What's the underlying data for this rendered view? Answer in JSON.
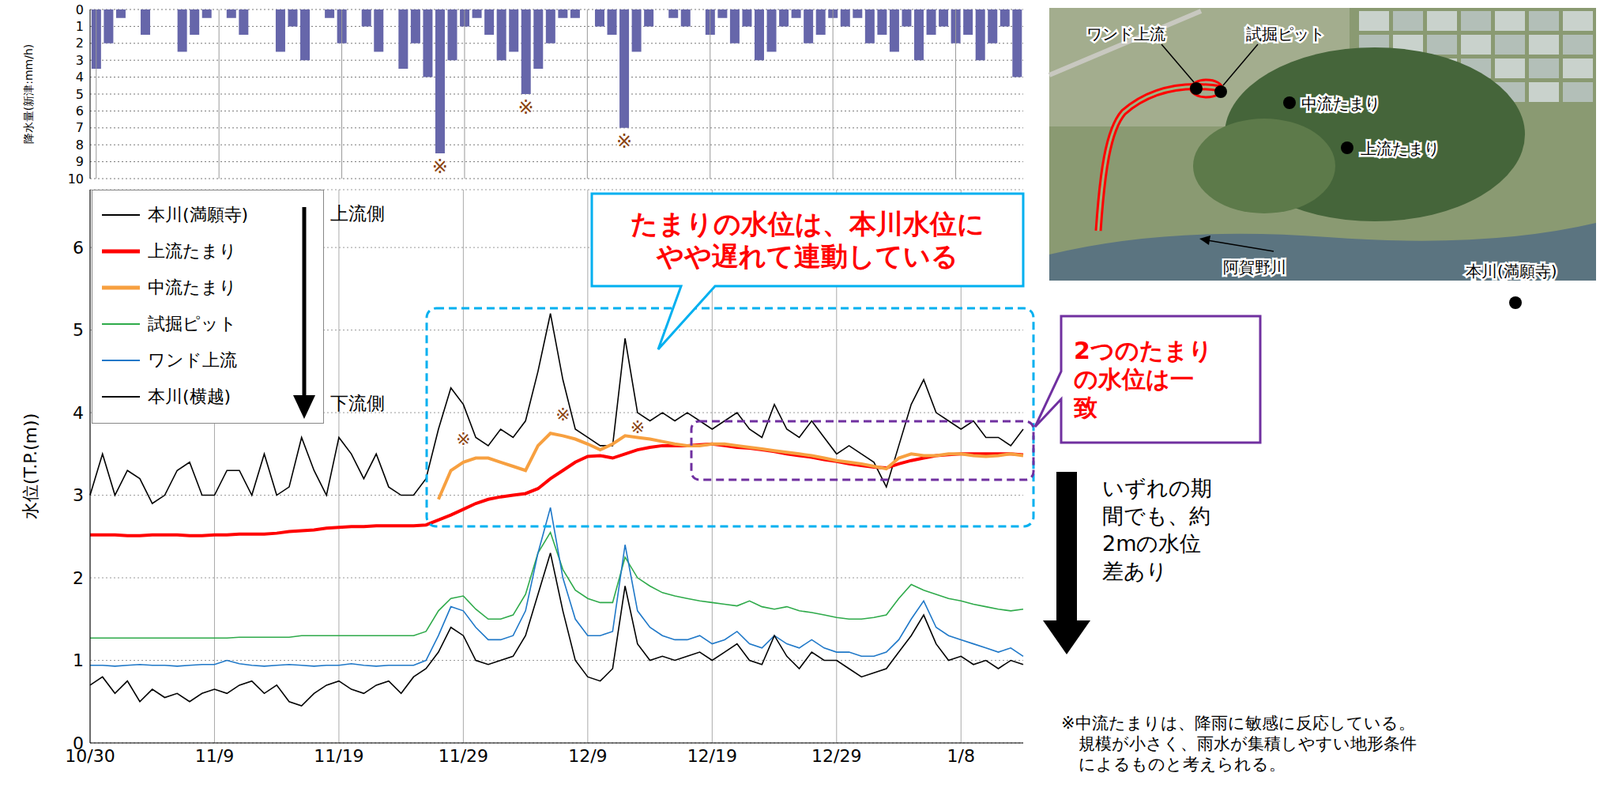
{
  "chart_data": [
    {
      "type": "bar",
      "y_label": "降水量(新津:mm/h)",
      "categories": [
        "10/30",
        null,
        null,
        null,
        null,
        null,
        null,
        null,
        null,
        null,
        "11/9",
        null,
        null,
        null,
        null,
        null,
        null,
        null,
        null,
        null,
        "11/19",
        null,
        null,
        null,
        null,
        null,
        null,
        null,
        null,
        null,
        "11/29",
        null,
        null,
        null,
        null,
        null,
        null,
        null,
        null,
        null,
        "12/9",
        null,
        null,
        null,
        null,
        null,
        null,
        null,
        null,
        null,
        "12/19",
        null,
        null,
        null,
        null,
        null,
        null,
        null,
        null,
        null,
        "12/29",
        null,
        null,
        null,
        null,
        null,
        null,
        null,
        null,
        null,
        "1/8",
        null,
        null,
        null,
        null,
        null
      ],
      "values": [
        3.5,
        2,
        0.5,
        0,
        1.5,
        0,
        0,
        2.5,
        1.5,
        0.5,
        0,
        0.5,
        1.5,
        0,
        0,
        2.5,
        1,
        3,
        0,
        0.5,
        2,
        0,
        1,
        2.5,
        0,
        3.5,
        2,
        4,
        8.5,
        3,
        1,
        0.5,
        1.5,
        3,
        2.5,
        5,
        3.5,
        2,
        0.5,
        0.5,
        0,
        1,
        1.5,
        7,
        2.5,
        1,
        0,
        0.5,
        1,
        0,
        1.5,
        0.5,
        2,
        1,
        3,
        2.5,
        1,
        0.5,
        2,
        1.5,
        0.5,
        1,
        0.5,
        2,
        1.5,
        2.5,
        1,
        3,
        1.5,
        1,
        2,
        1.5,
        3,
        2,
        1,
        4
      ],
      "color": "#6666aa",
      "ylim": [
        10,
        0
      ],
      "yticks": [
        0,
        1,
        2,
        3,
        4,
        5,
        6,
        7,
        8,
        9,
        10
      ],
      "grid": true,
      "tick_labels": "y",
      "annotations": {
        "marks": [
          {
            "text": "※",
            "x": 28,
            "y": 9.3
          },
          {
            "text": "※",
            "x": 35,
            "y": 5.8
          },
          {
            "text": "※",
            "x": 43,
            "y": 7.8
          }
        ]
      }
    },
    {
      "type": "line",
      "y_label": "水位(T.P.(m))",
      "categories": [
        "10/30",
        null,
        null,
        null,
        null,
        null,
        null,
        null,
        null,
        null,
        "11/9",
        null,
        null,
        null,
        null,
        null,
        null,
        null,
        null,
        null,
        "11/19",
        null,
        null,
        null,
        null,
        null,
        null,
        null,
        null,
        null,
        "11/29",
        null,
        null,
        null,
        null,
        null,
        null,
        null,
        null,
        null,
        "12/9",
        null,
        null,
        null,
        null,
        null,
        null,
        null,
        null,
        null,
        "12/19",
        null,
        null,
        null,
        null,
        null,
        null,
        null,
        null,
        null,
        "12/29",
        null,
        null,
        null,
        null,
        null,
        null,
        null,
        null,
        null,
        "1/8",
        null,
        null,
        null,
        null,
        null
      ],
      "ylim": [
        0,
        6.7
      ],
      "yticks": [
        0,
        1,
        2,
        3,
        4,
        5,
        6
      ],
      "grid": true,
      "legend": "upper left",
      "series": [
        {
          "name": "本川(満願寺)",
          "color": "#000000",
          "line_style": "solid",
          "values": [
            3.0,
            3.5,
            3.0,
            3.3,
            3.2,
            2.9,
            3.0,
            3.3,
            3.4,
            3.0,
            3.0,
            3.3,
            3.3,
            3.0,
            3.5,
            3.0,
            3.1,
            3.7,
            3.3,
            3.0,
            3.7,
            3.5,
            3.2,
            3.5,
            3.1,
            3.0,
            3.0,
            3.2,
            3.8,
            4.3,
            4.1,
            3.7,
            3.6,
            3.8,
            3.7,
            3.9,
            4.5,
            5.2,
            4.4,
            3.8,
            3.7,
            3.6,
            3.6,
            4.9,
            4.0,
            3.9,
            4.0,
            3.9,
            4.0,
            3.9,
            3.8,
            3.9,
            4.0,
            3.8,
            3.7,
            4.1,
            3.8,
            3.7,
            3.9,
            3.7,
            3.5,
            3.6,
            3.5,
            3.4,
            3.1,
            3.6,
            4.1,
            4.4,
            4.0,
            3.9,
            3.8,
            3.9,
            3.7,
            3.7,
            3.6,
            3.8
          ]
        },
        {
          "name": "上流たまり",
          "color": "#ff0000",
          "line_style": "bold",
          "values": [
            2.52,
            2.52,
            2.52,
            2.51,
            2.51,
            2.52,
            2.52,
            2.52,
            2.51,
            2.51,
            2.52,
            2.52,
            2.53,
            2.53,
            2.53,
            2.54,
            2.56,
            2.57,
            2.58,
            2.6,
            2.61,
            2.62,
            2.62,
            2.63,
            2.63,
            2.63,
            2.63,
            2.64,
            2.7,
            2.76,
            2.83,
            2.9,
            2.95,
            2.98,
            3.0,
            3.02,
            3.08,
            3.2,
            3.3,
            3.4,
            3.47,
            3.48,
            3.45,
            3.5,
            3.55,
            3.58,
            3.6,
            3.6,
            3.6,
            3.61,
            3.62,
            3.6,
            3.58,
            3.57,
            3.55,
            3.53,
            3.5,
            3.48,
            3.46,
            3.43,
            3.41,
            3.38,
            3.36,
            3.34,
            3.33,
            3.38,
            3.42,
            3.45,
            3.48,
            3.49,
            3.5,
            3.5,
            3.5,
            3.5,
            3.5,
            3.49
          ]
        },
        {
          "name": "中流たまり",
          "color": "#f7a040",
          "line_style": "bold",
          "values": [
            null,
            null,
            null,
            null,
            null,
            null,
            null,
            null,
            null,
            null,
            null,
            null,
            null,
            null,
            null,
            null,
            null,
            null,
            null,
            null,
            null,
            null,
            null,
            null,
            null,
            null,
            null,
            null,
            2.95,
            3.3,
            3.4,
            3.45,
            3.45,
            3.4,
            3.35,
            3.3,
            3.6,
            3.75,
            3.72,
            3.68,
            3.62,
            3.55,
            3.62,
            3.72,
            3.7,
            3.68,
            3.65,
            3.62,
            3.6,
            3.6,
            3.62,
            3.62,
            3.6,
            3.58,
            3.56,
            3.54,
            3.52,
            3.5,
            3.48,
            3.45,
            3.42,
            3.4,
            3.38,
            3.35,
            3.32,
            3.45,
            3.5,
            3.48,
            3.48,
            3.5,
            3.5,
            3.48,
            3.47,
            3.48,
            3.5,
            3.48
          ]
        },
        {
          "name": "試掘ピット",
          "color": "#2eaa4a",
          "line_style": "solid",
          "values": [
            1.27,
            1.27,
            1.27,
            1.27,
            1.27,
            1.27,
            1.27,
            1.27,
            1.27,
            1.27,
            1.27,
            1.27,
            1.28,
            1.28,
            1.28,
            1.28,
            1.28,
            1.3,
            1.3,
            1.3,
            1.3,
            1.3,
            1.3,
            1.3,
            1.3,
            1.3,
            1.3,
            1.35,
            1.6,
            1.75,
            1.78,
            1.62,
            1.5,
            1.5,
            1.55,
            1.8,
            2.3,
            2.55,
            2.1,
            1.85,
            1.75,
            1.7,
            1.7,
            2.25,
            2.0,
            1.9,
            1.82,
            1.78,
            1.75,
            1.72,
            1.7,
            1.68,
            1.66,
            1.72,
            1.65,
            1.62,
            1.65,
            1.6,
            1.58,
            1.55,
            1.52,
            1.5,
            1.5,
            1.52,
            1.55,
            1.75,
            1.92,
            1.85,
            1.8,
            1.75,
            1.72,
            1.68,
            1.65,
            1.62,
            1.6,
            1.62
          ]
        },
        {
          "name": "ワンド上流",
          "color": "#1f78c8",
          "line_style": "solid",
          "values": [
            0.94,
            0.94,
            0.93,
            0.94,
            0.95,
            0.94,
            0.94,
            0.93,
            0.94,
            0.95,
            0.95,
            1.0,
            0.96,
            0.94,
            0.93,
            0.94,
            0.95,
            0.94,
            0.93,
            0.94,
            0.94,
            0.96,
            0.94,
            0.93,
            0.94,
            0.94,
            0.94,
            1.0,
            1.3,
            1.65,
            1.6,
            1.4,
            1.25,
            1.25,
            1.3,
            1.6,
            2.3,
            2.85,
            2.0,
            1.5,
            1.3,
            1.3,
            1.35,
            2.4,
            1.6,
            1.4,
            1.3,
            1.25,
            1.25,
            1.3,
            1.2,
            1.25,
            1.35,
            1.2,
            1.15,
            1.3,
            1.2,
            1.15,
            1.25,
            1.15,
            1.1,
            1.1,
            1.05,
            1.05,
            1.1,
            1.25,
            1.5,
            1.72,
            1.4,
            1.3,
            1.25,
            1.2,
            1.15,
            1.1,
            1.15,
            1.05
          ]
        },
        {
          "name": "本川(横越)",
          "color": "#000000",
          "line_style": "solid",
          "values": [
            0.7,
            0.8,
            0.6,
            0.75,
            0.5,
            0.65,
            0.55,
            0.6,
            0.5,
            0.6,
            0.65,
            0.6,
            0.7,
            0.75,
            0.6,
            0.7,
            0.5,
            0.45,
            0.6,
            0.7,
            0.75,
            0.65,
            0.6,
            0.7,
            0.75,
            0.6,
            0.8,
            0.9,
            1.1,
            1.4,
            1.3,
            1.0,
            0.95,
            1.0,
            1.05,
            1.3,
            1.8,
            2.3,
            1.6,
            1.0,
            0.8,
            0.75,
            0.9,
            1.9,
            1.2,
            1.0,
            1.05,
            1.0,
            1.05,
            1.1,
            1.0,
            1.1,
            1.2,
            1.0,
            0.95,
            1.3,
            1.05,
            0.9,
            1.1,
            1.0,
            1.0,
            0.9,
            0.8,
            0.85,
            0.9,
            1.1,
            1.3,
            1.55,
            1.2,
            1.0,
            1.05,
            0.95,
            1.0,
            0.9,
            1.0,
            0.95
          ]
        }
      ],
      "annotations": {
        "upstream": "上流側",
        "downstream": "下流側",
        "callout_lag": "たまりの水位は、本川水位にやや遅れて連動している",
        "callout_match": "2つのたまりの水位は一致",
        "level_gap": "いずれの期間でも、約2mの水位差あり",
        "marks": [
          {
            "text": "※",
            "x": 30,
            "y": 3.68
          },
          {
            "text": "※",
            "x": 38,
            "y": 3.98
          },
          {
            "text": "※",
            "x": 44,
            "y": 3.82
          }
        ]
      },
      "footnote": [
        "※中流たまりは、降雨に敏感に反応している。",
        "規模が小さく、雨水が集積しやすい地形条件",
        "によるものと考えられる。"
      ]
    }
  ],
  "map": {
    "labels": [
      "ワンド上流",
      "試掘ピット",
      "中流たまり",
      "上流たまり",
      "阿賀野川",
      "本川(満願寺)"
    ]
  }
}
